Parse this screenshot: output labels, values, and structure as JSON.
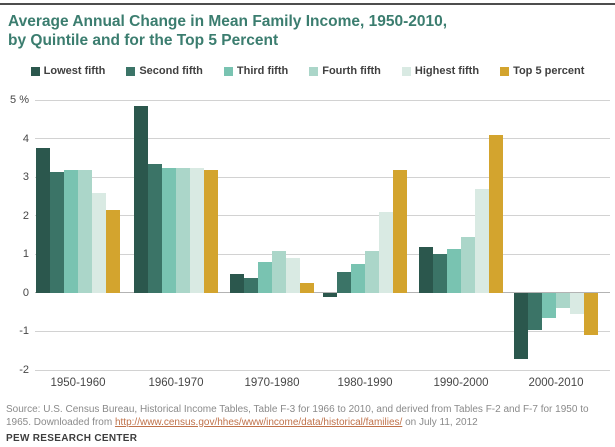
{
  "header": {
    "title_line1": "Average Annual Change in Mean Family Income, 1950-2010,",
    "title_line2": "by Quintile and for the Top 5 Percent"
  },
  "chart_data": {
    "type": "bar",
    "title": "Average Annual Change in Mean Family Income, 1950-2010, by Quintile and for the Top 5 Percent",
    "categories": [
      "1950-1960",
      "1960-1970",
      "1970-1980",
      "1980-1990",
      "1990-2000",
      "2000-2010"
    ],
    "series": [
      {
        "name": "Lowest fifth",
        "color": "#2b574d",
        "values": [
          3.75,
          4.85,
          0.5,
          -0.1,
          1.2,
          -1.7
        ]
      },
      {
        "name": "Second fifth",
        "color": "#3b7467",
        "values": [
          3.15,
          3.35,
          0.4,
          0.55,
          1.0,
          -0.95
        ]
      },
      {
        "name": "Third fifth",
        "color": "#79c3b1",
        "values": [
          3.2,
          3.25,
          0.8,
          0.75,
          1.15,
          -0.65
        ]
      },
      {
        "name": "Fourth fifth",
        "color": "#abd6c9",
        "values": [
          3.2,
          3.25,
          1.1,
          1.1,
          1.45,
          -0.4
        ]
      },
      {
        "name": "Highest fifth",
        "color": "#d9eae3",
        "values": [
          2.6,
          3.25,
          0.9,
          2.1,
          2.7,
          -0.55
        ]
      },
      {
        "name": "Top 5 percent",
        "color": "#d3a42e",
        "values": [
          2.15,
          3.2,
          0.25,
          3.2,
          4.1,
          -1.1
        ]
      }
    ],
    "ylim": [
      -2,
      5
    ],
    "ytick_step": 1,
    "ytick_top_label": "5 %",
    "xlabel": "",
    "ylabel": "%",
    "grid": true,
    "legend_position": "top"
  },
  "footer": {
    "source_prefix": "Source: U.S. Census Bureau, Historical Income Tables, Table F-3 for 1966 to 2010, and derived from Tables F-2 and F-7 for 1950 to 1965. Downloaded from ",
    "source_link": "http://www.census.gov/hhes/www/income/data/historical/families/",
    "source_suffix": " on July 11, 2012",
    "brand": "PEW RESEARCH CENTER"
  }
}
